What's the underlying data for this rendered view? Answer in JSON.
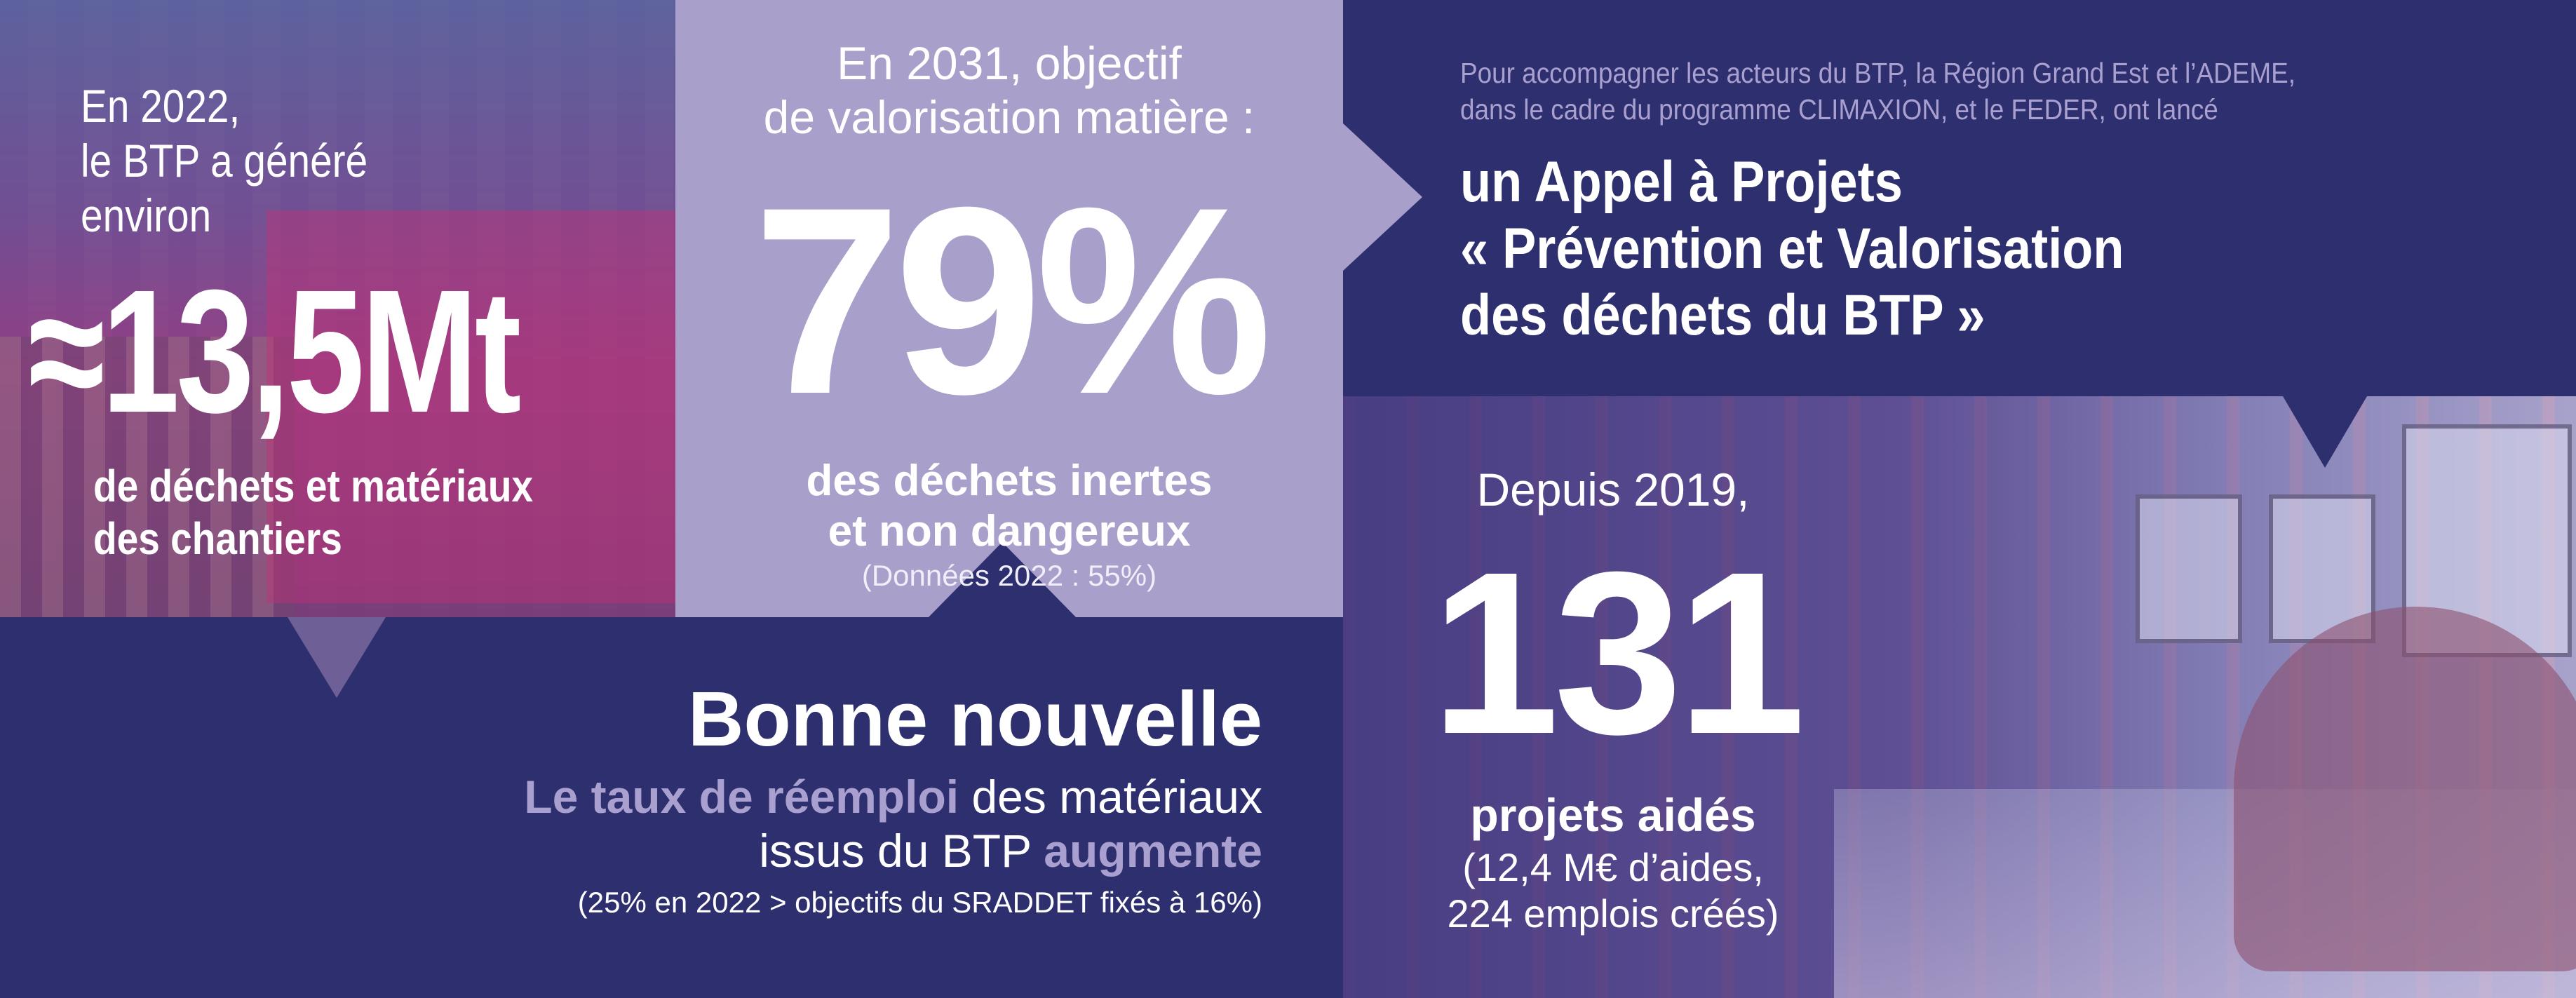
{
  "colors": {
    "navy": "#2e2f6e",
    "lavender": "#a99fcb",
    "lavender_text": "#a9a0d0"
  },
  "left_panel": {
    "intro_lines": [
      "En 2022,",
      "le BTP a généré",
      "environ"
    ],
    "figure": "≈13,5Mt",
    "sub_lines": [
      "de déchets et matériaux",
      "des chantiers"
    ]
  },
  "middle_panel": {
    "intro_lines": [
      "En 2031, objectif",
      "de valorisation matière :"
    ],
    "figure": "79%",
    "sub_lines": [
      "des déchets inertes",
      "et non dangereux"
    ],
    "note": "(Données 2022 : 55%)"
  },
  "right_top": {
    "paragraph_lines": [
      "Pour accompagner les acteurs du BTP, la Région Grand Est et l’ADEME,",
      "dans le cadre du programme CLIMAXION, et le FEDER, ont lancé"
    ],
    "headline_lines": [
      "un Appel à Projets",
      "« Prévention et Valorisation",
      "des déchets du BTP »"
    ]
  },
  "right_bottom": {
    "since": "Depuis 2019,",
    "figure": "131",
    "label": "projets aidés",
    "detail_lines": [
      "(12,4 M€ d’aides,",
      "224 emplois créés)"
    ]
  },
  "bottom_left": {
    "headline": "Bonne nouvelle",
    "line1_bold": "Le taux de réemploi",
    "line1_rest": " des matériaux",
    "line2_rest": "issus du BTP ",
    "line2_bold": "augmente",
    "note": "(25% en 2022 > objectifs du SRADDET fixés à 16%)"
  }
}
